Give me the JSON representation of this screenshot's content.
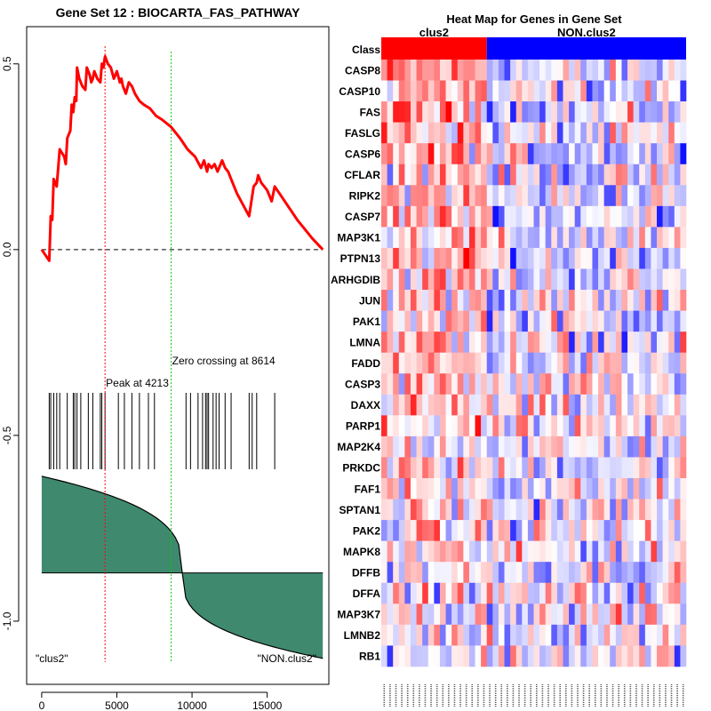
{
  "chart_data": [
    {
      "type": "line",
      "title": "Gene Set  12 : BIOCARTA_FAS_PATHWAY",
      "x_ticks": [
        "0",
        "5000",
        "10000",
        "15000"
      ],
      "y_ticks": [
        "0.5",
        "0.0",
        "-0.5",
        "-1.0"
      ],
      "xlim": [
        -1000,
        19100
      ],
      "ylim": [
        -1.17,
        0.6
      ],
      "enrichment_line_color": "#ff0000",
      "enrichment_series": {
        "name": "running enrichment score",
        "x": [
          0,
          500,
          600,
          700,
          800,
          900,
          1000,
          1200,
          1500,
          1600,
          1700,
          1900,
          2000,
          2100,
          2200,
          2300,
          2350,
          2500,
          2700,
          2900,
          3000,
          3200,
          3300,
          3400,
          3500,
          3700,
          3900,
          4000,
          4100,
          4213,
          4400,
          4600,
          4800,
          5000,
          5200,
          5300,
          5400,
          5600,
          5800,
          6000,
          6200,
          6500,
          6800,
          7200,
          7600,
          8000,
          8614,
          9200,
          9700,
          10200,
          10600,
          10800,
          11000,
          11100,
          11300,
          11500,
          11700,
          11800,
          12000,
          12200,
          12400,
          12600,
          12800,
          13000,
          13400,
          13800,
          14100,
          14300,
          14400,
          14600,
          15000,
          15300,
          15500,
          16000,
          17000,
          18000,
          18700
        ],
        "y": [
          0.0,
          -0.03,
          0.09,
          0.08,
          0.19,
          0.18,
          0.17,
          0.27,
          0.25,
          0.23,
          0.3,
          0.32,
          0.39,
          0.37,
          0.41,
          0.4,
          0.49,
          0.46,
          0.44,
          0.43,
          0.49,
          0.47,
          0.45,
          0.46,
          0.48,
          0.46,
          0.45,
          0.5,
          0.49,
          0.52,
          0.5,
          0.49,
          0.46,
          0.48,
          0.45,
          0.46,
          0.44,
          0.42,
          0.45,
          0.44,
          0.42,
          0.4,
          0.39,
          0.38,
          0.36,
          0.35,
          0.33,
          0.3,
          0.27,
          0.25,
          0.22,
          0.24,
          0.21,
          0.23,
          0.22,
          0.23,
          0.21,
          0.22,
          0.24,
          0.22,
          0.21,
          0.19,
          0.17,
          0.15,
          0.12,
          0.09,
          0.17,
          0.18,
          0.2,
          0.18,
          0.16,
          0.13,
          0.17,
          0.14,
          0.08,
          0.03,
          0.0
        ]
      },
      "peak": {
        "x": 4213,
        "label": "Peak at 4213",
        "color": "#ff0000"
      },
      "zero_crossing": {
        "x": 8614,
        "label": "Zero crossing at 8614",
        "color": "#00cc00"
      },
      "hit_positions": [
        500,
        600,
        800,
        1000,
        1200,
        1700,
        2100,
        2200,
        2350,
        2600,
        3100,
        3400,
        3900,
        4000,
        4213,
        5100,
        5500,
        6000,
        6500,
        7100,
        7500,
        9600,
        9900,
        10400,
        10700,
        10900,
        11000,
        11100,
        11400,
        11600,
        11800,
        12200,
        12600,
        13800,
        14000,
        14300,
        15500
      ],
      "ranked_metric": {
        "baseline": -0.87,
        "start": -0.61,
        "end": -1.1,
        "fill_color": "#3f8a6e"
      },
      "left_label": "\"clus2\"",
      "right_label": "\"NON.clus2\""
    },
    {
      "type": "heatmap",
      "title": "Heat Map for Genes in Gene Set",
      "class_label": "Class",
      "classes": [
        {
          "name": "clus2",
          "color": "#ff0000",
          "samples": 18
        },
        {
          "name": "NON.clus2",
          "color": "#0000ff",
          "samples": 34
        }
      ],
      "genes": [
        "CASP8",
        "CASP10",
        "FAS",
        "FASLG",
        "CASP6",
        "CFLAR",
        "RIPK2",
        "CASP7",
        "MAP3K1",
        "PTPN13",
        "ARHGDIB",
        "JUN",
        "PAK1",
        "LMNA",
        "FADD",
        "CASP3",
        "DAXX",
        "PARP1",
        "MAP2K4",
        "PRKDC",
        "FAF1",
        "SPTAN1",
        "PAK2",
        "MAPK8",
        "DFFB",
        "DFFA",
        "MAP3K7",
        "LMNB2",
        "RB1"
      ],
      "color_scale": {
        "low": "#0000ff",
        "mid": "#ffffff",
        "high": "#ff0000",
        "range": [
          -2.5,
          2.5
        ]
      }
    }
  ]
}
